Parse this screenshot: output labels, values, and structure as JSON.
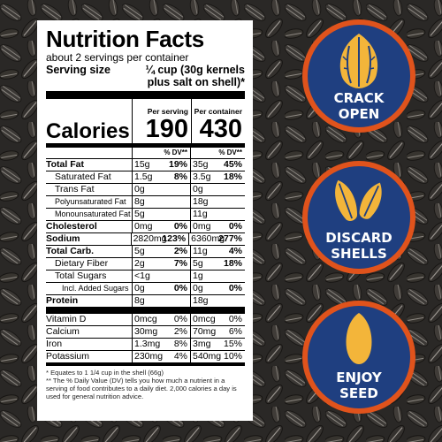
{
  "title": "Nutrition Facts",
  "servings": "about 2 servings per container",
  "serving_size": {
    "label": "Serving size",
    "line1": "¼ cup (30g kernels",
    "line2": "plus salt on shell)*"
  },
  "calories": {
    "label": "Calories",
    "per_serving_header": "Per serving",
    "per_container_header": "Per container",
    "per_serving": "190",
    "per_container": "430"
  },
  "dv_header": "% DV**",
  "nutrients": [
    {
      "name": "Total Fat",
      "a1": "15g",
      "p1": "19%",
      "a2": "35g",
      "p2": "45%"
    },
    {
      "name": "Saturated Fat",
      "a1": "1.5g",
      "p1": "8%",
      "a2": "3.5g",
      "p2": "18%"
    },
    {
      "name": "Trans Fat",
      "a1": "0g",
      "p1": "",
      "a2": "0g",
      "p2": ""
    },
    {
      "name": "Polyunsaturated Fat",
      "a1": "8g",
      "p1": "",
      "a2": "18g",
      "p2": ""
    },
    {
      "name": "Monounsaturated Fat",
      "a1": "5g",
      "p1": "",
      "a2": "11g",
      "p2": ""
    },
    {
      "name": "Cholesterol",
      "a1": "0mg",
      "p1": "0%",
      "a2": "0mg",
      "p2": "0%"
    },
    {
      "name": "Sodium",
      "a1": "2820mg",
      "p1": "123%",
      "a2": "6360mg",
      "p2": "277%"
    },
    {
      "name": "Total Carb.",
      "a1": "5g",
      "p1": "2%",
      "a2": "11g",
      "p2": "4%"
    },
    {
      "name": "Dietary Fiber",
      "a1": "2g",
      "p1": "7%",
      "a2": "5g",
      "p2": "18%"
    },
    {
      "name": "Total Sugars",
      "a1": "<1g",
      "p1": "",
      "a2": "1g",
      "p2": ""
    },
    {
      "name": "Incl. Added Sugars",
      "a1": "0g",
      "p1": "0%",
      "a2": "0g",
      "p2": "0%"
    },
    {
      "name": "Protein",
      "a1": "8g",
      "p1": "",
      "a2": "18g",
      "p2": ""
    }
  ],
  "vitamins": [
    {
      "name": "Vitamin D",
      "a1": "0mcg",
      "p1": "0%",
      "a2": "0mcg",
      "p2": "0%"
    },
    {
      "name": "Calcium",
      "a1": "30mg",
      "p1": "2%",
      "a2": "70mg",
      "p2": "6%"
    },
    {
      "name": "Iron",
      "a1": "1.3mg",
      "p1": "8%",
      "a2": "3mg",
      "p2": "15%"
    },
    {
      "name": "Potassium",
      "a1": "230mg",
      "p1": "4%",
      "a2": "540mg",
      "p2": "10%"
    }
  ],
  "footnote1": "* Equates to 1 1/4 cup in the shell (66g)",
  "footnote2": "** The % Daily Value (DV) tells you how much a nutrient in a serving of food contributes to a daily diet. 2,000 calories a day is used for general nutrition advice.",
  "badges": [
    {
      "line1": "CRACK",
      "line2": "OPEN",
      "icon": "cracked-seed-icon"
    },
    {
      "line1": "DISCARD",
      "line2": "SHELLS",
      "icon": "shell-halves-icon"
    },
    {
      "line1": "ENJOY",
      "line2": "SEED",
      "icon": "kernel-icon"
    }
  ],
  "colors": {
    "badge_fill": "#1f3f80",
    "badge_ring": "#e0531c",
    "seed": "#f3b53a",
    "background": "#2a2826"
  }
}
